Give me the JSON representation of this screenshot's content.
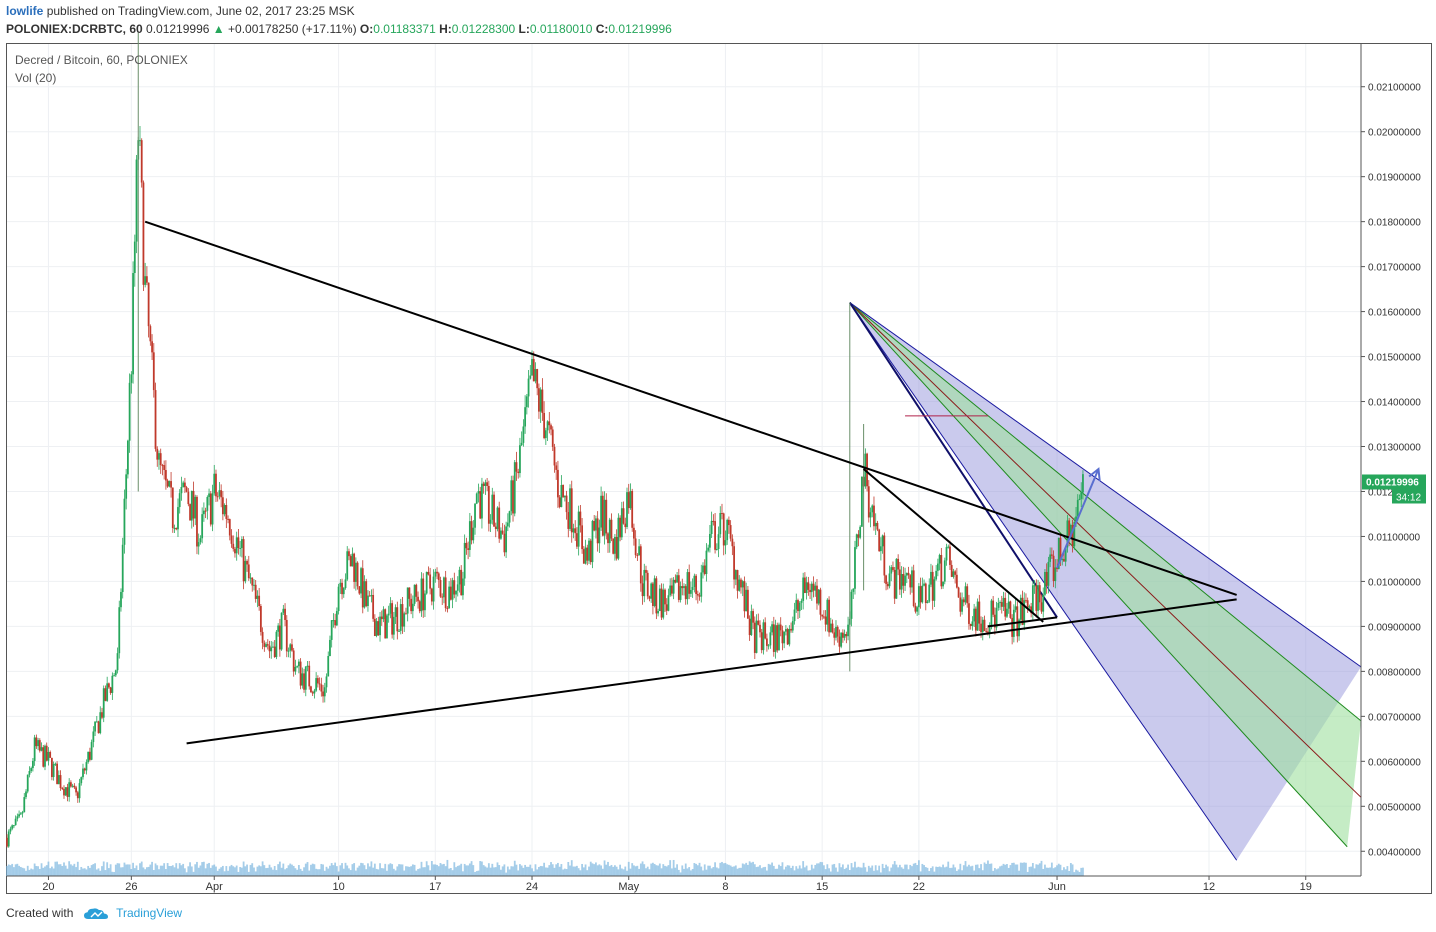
{
  "header": {
    "user": "lowlife",
    "published_text": "published on TradingView.com, June 02, 2017 23:25 MSK"
  },
  "quote": {
    "symbol": "POLONIEX:DCRBTC, 60",
    "last": "0.01219996",
    "arrow": "▲",
    "change": "+0.00178250 (+17.11%)",
    "o_label": "O:",
    "o": "0.01183371",
    "h_label": "H:",
    "h": "0.01228300",
    "l_label": "L:",
    "l": "0.01180010",
    "c_label": "C:",
    "c": "0.01219996"
  },
  "legend": {
    "title": "Decred / Bitcoin, 60, POLONIEX",
    "vol": "Vol (20)"
  },
  "footer": {
    "created_with": "Created with",
    "brand": "TradingView",
    "logo_icon": "cloud-logo-icon"
  },
  "colors": {
    "up": "#26a65b",
    "down": "#c0392b",
    "volume": "#7fb8e0",
    "fan_outer": "#8a8ad6",
    "fan_inner": "#9fe09f",
    "price_tag": "#26a65b"
  },
  "chart_data": {
    "type": "candlestick",
    "title": "Decred / Bitcoin, 60, POLONIEX",
    "y_ticks": [
      "0.02100000",
      "0.02000000",
      "0.01900000",
      "0.01800000",
      "0.01700000",
      "0.01600000",
      "0.01500000",
      "0.01400000",
      "0.01300000",
      "0.01200000",
      "0.01100000",
      "0.01000000",
      "0.00900000",
      "0.00800000",
      "0.00700000",
      "0.00600000",
      "0.00500000",
      "0.00400000"
    ],
    "x_ticks": [
      "20",
      "26",
      "Apr",
      "10",
      "17",
      "24",
      "May",
      "8",
      "15",
      "22",
      "Jun",
      "12",
      "19"
    ],
    "last_price_label": "0.01219996",
    "countdown_label": "34:12",
    "ylim": [
      0.00345,
      0.02195
    ],
    "xlim": [
      "2017-03-17",
      "2017-06-23"
    ],
    "price_path": [
      [
        "2017-03-17",
        0.0043
      ],
      [
        "2017-03-18",
        0.0047
      ],
      [
        "2017-03-19",
        0.0063
      ],
      [
        "2017-03-20",
        0.006
      ],
      [
        "2017-03-21",
        0.0055
      ],
      [
        "2017-03-22",
        0.0052
      ],
      [
        "2017-03-23",
        0.0062
      ],
      [
        "2017-03-24",
        0.0073
      ],
      [
        "2017-03-25",
        0.0082
      ],
      [
        "2017-03-26",
        0.015
      ],
      [
        "2017-03-26T12",
        0.02
      ],
      [
        "2017-03-27",
        0.0165
      ],
      [
        "2017-03-28",
        0.0125
      ],
      [
        "2017-03-29",
        0.0115
      ],
      [
        "2017-03-30",
        0.012
      ],
      [
        "2017-03-31",
        0.011
      ],
      [
        "2017-04-01",
        0.012
      ],
      [
        "2017-04-02",
        0.0115
      ],
      [
        "2017-04-03",
        0.0105
      ],
      [
        "2017-04-04",
        0.0095
      ],
      [
        "2017-04-05",
        0.0085
      ],
      [
        "2017-04-06",
        0.009
      ],
      [
        "2017-04-07",
        0.008
      ],
      [
        "2017-04-08",
        0.0078
      ],
      [
        "2017-04-09",
        0.0076
      ],
      [
        "2017-04-10",
        0.01
      ],
      [
        "2017-04-11",
        0.0105
      ],
      [
        "2017-04-12",
        0.0095
      ],
      [
        "2017-04-13",
        0.009
      ],
      [
        "2017-04-14",
        0.0092
      ],
      [
        "2017-04-15",
        0.0095
      ],
      [
        "2017-04-16",
        0.0097
      ],
      [
        "2017-04-17",
        0.01
      ],
      [
        "2017-04-18",
        0.0098
      ],
      [
        "2017-04-19",
        0.0102
      ],
      [
        "2017-04-20",
        0.012
      ],
      [
        "2017-04-21",
        0.0115
      ],
      [
        "2017-04-22",
        0.011
      ],
      [
        "2017-04-23",
        0.0125
      ],
      [
        "2017-04-24",
        0.0145
      ],
      [
        "2017-04-25",
        0.0135
      ],
      [
        "2017-04-26",
        0.012
      ],
      [
        "2017-04-27",
        0.0115
      ],
      [
        "2017-04-28",
        0.0105
      ],
      [
        "2017-04-29",
        0.0115
      ],
      [
        "2017-04-30",
        0.0108
      ],
      [
        "2017-05-01",
        0.012
      ],
      [
        "2017-05-02",
        0.01
      ],
      [
        "2017-05-03",
        0.0096
      ],
      [
        "2017-05-04",
        0.0095
      ],
      [
        "2017-05-05",
        0.01
      ],
      [
        "2017-05-06",
        0.0098
      ],
      [
        "2017-05-07",
        0.011
      ],
      [
        "2017-05-08",
        0.0112
      ],
      [
        "2017-05-09",
        0.01
      ],
      [
        "2017-05-10",
        0.0088
      ],
      [
        "2017-05-11",
        0.0087
      ],
      [
        "2017-05-12",
        0.0088
      ],
      [
        "2017-05-13",
        0.0092
      ],
      [
        "2017-05-14",
        0.01
      ],
      [
        "2017-05-15",
        0.0095
      ],
      [
        "2017-05-16",
        0.0088
      ],
      [
        "2017-05-17",
        0.009
      ],
      [
        "2017-05-18",
        0.0125
      ],
      [
        "2017-05-19",
        0.011
      ],
      [
        "2017-05-20",
        0.01
      ],
      [
        "2017-05-21",
        0.0102
      ],
      [
        "2017-05-22",
        0.0095
      ],
      [
        "2017-05-23",
        0.01
      ],
      [
        "2017-05-24",
        0.0105
      ],
      [
        "2017-05-25",
        0.0096
      ],
      [
        "2017-05-26",
        0.0093
      ],
      [
        "2017-05-27",
        0.0092
      ],
      [
        "2017-05-28",
        0.0093
      ],
      [
        "2017-05-29",
        0.0091
      ],
      [
        "2017-05-30",
        0.0095
      ],
      [
        "2017-05-31",
        0.0098
      ],
      [
        "2017-06-01",
        0.0105
      ],
      [
        "2017-06-02",
        0.011
      ],
      [
        "2017-06-02T23",
        0.0122
      ]
    ],
    "drawings": {
      "descending_resistance": [
        [
          "2017-03-27",
          0.018
        ],
        [
          "2017-06-14",
          0.0097
        ]
      ],
      "ascending_support": [
        [
          "2017-03-30",
          0.0064
        ],
        [
          "2017-06-14",
          0.0096
        ]
      ],
      "inner_descending": [
        [
          "2017-05-18",
          0.0125
        ],
        [
          "2017-05-31",
          0.0091
        ]
      ],
      "inner_support": [
        [
          "2017-05-27",
          0.009
        ],
        [
          "2017-06-01",
          0.0092
        ]
      ],
      "projection_arrow": [
        [
          "2017-06-01",
          0.0103
        ],
        [
          "2017-06-04",
          0.0125
        ]
      ],
      "fan_origin": [
        "2017-05-17",
        0.0162
      ],
      "fan_edges": [
        [
          "2017-06-14",
          0.0038
        ],
        [
          "2017-06-22",
          0.0041
        ],
        [
          "2017-06-23",
          0.0052
        ],
        [
          "2017-06-23",
          0.0069
        ],
        [
          "2017-06-23",
          0.0081
        ]
      ]
    }
  }
}
